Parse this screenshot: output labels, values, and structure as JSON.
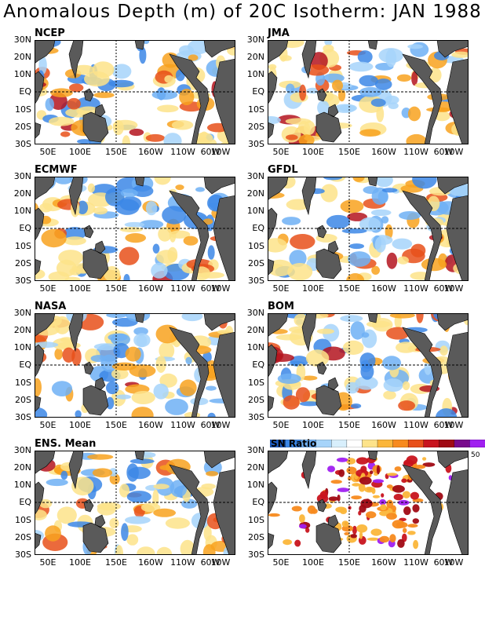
{
  "title": "Anomalous Depth (m) of 20C Isotherm: JAN 1988",
  "lat_labels": [
    "30N",
    "20N",
    "10N",
    "EQ",
    "10S",
    "20S",
    "30S"
  ],
  "lon_labels": [
    "50E",
    "100E",
    "150E",
    "160W",
    "110W",
    "60W",
    "10W"
  ],
  "panels": [
    {
      "name": "NCEP",
      "kind": "anomaly",
      "seed": 11
    },
    {
      "name": "JMA",
      "kind": "anomaly",
      "seed": 23
    },
    {
      "name": "ECMWF",
      "kind": "anomaly",
      "seed": 37
    },
    {
      "name": "GFDL",
      "kind": "anomaly",
      "seed": 41
    },
    {
      "name": "NASA",
      "kind": "anomaly",
      "seed": 53
    },
    {
      "name": "BOM",
      "kind": "anomaly",
      "seed": 67
    },
    {
      "name": "ENS. Mean",
      "kind": "anomaly",
      "seed": 79
    },
    {
      "name": "",
      "kind": "snratio",
      "seed": 97
    }
  ],
  "colorbar": {
    "title": "SN Ratio",
    "max_label": "50",
    "colors": [
      "#1e5fc8",
      "#3c87e6",
      "#6fb0f5",
      "#a6d4fa",
      "#d8effc",
      "#ffffff",
      "#fde38a",
      "#fbb63a",
      "#f78a1e",
      "#e8501a",
      "#c8141e",
      "#a00a14",
      "#780a8c",
      "#a020f0"
    ]
  },
  "colors": {
    "land": "#5a5a5a",
    "neg_strong": "#3c87e6",
    "neg_mid": "#6fb0f5",
    "neg_weak": "#a6d4fa",
    "pos_weak": "#fde38a",
    "pos_mid": "#f8a21e",
    "pos_strong": "#e8501a",
    "pos_extreme": "#b4141e"
  }
}
